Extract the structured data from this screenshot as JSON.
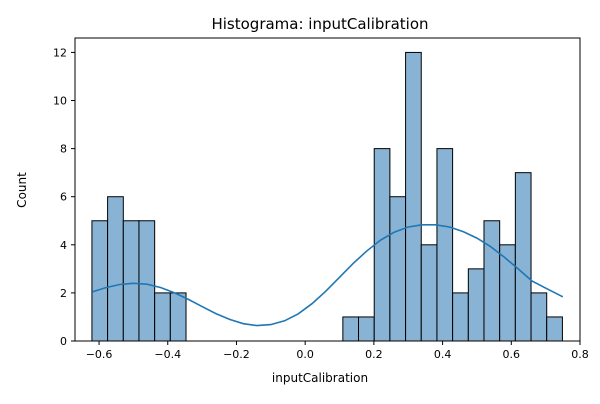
{
  "chart_data": {
    "type": "bar",
    "title": "Histograma: inputCalibration",
    "xlabel": "inputCalibration",
    "ylabel": "Count",
    "xlim": [
      -0.67,
      0.8
    ],
    "ylim": [
      0,
      12.6
    ],
    "x_ticks": [
      -0.6,
      -0.4,
      -0.2,
      0.0,
      0.2,
      0.4,
      0.6,
      0.8
    ],
    "x_tick_labels": [
      "−0.6",
      "−0.4",
      "−0.2",
      "0.0",
      "0.2",
      "0.4",
      "0.6",
      "0.8"
    ],
    "y_ticks": [
      0,
      2,
      4,
      6,
      8,
      10,
      12
    ],
    "y_tick_labels": [
      "0",
      "2",
      "4",
      "6",
      "8",
      "10",
      "12"
    ],
    "bin_edges": [
      -0.6207,
      -0.5751,
      -0.5294,
      -0.4838,
      -0.4381,
      -0.3925,
      -0.3468,
      -0.3012,
      -0.2555,
      -0.2099,
      -0.1642,
      -0.1186,
      -0.0729,
      -0.0273,
      0.0184,
      0.064,
      0.1097,
      0.1553,
      0.201,
      0.2466,
      0.2923,
      0.3379,
      0.3836,
      0.4292,
      0.4749,
      0.5205,
      0.5662,
      0.6118,
      0.6575,
      0.7031,
      0.7488
    ],
    "counts": [
      5,
      6,
      5,
      5,
      2,
      2,
      0,
      0,
      0,
      0,
      0,
      0,
      0,
      0,
      0,
      0,
      1,
      1,
      8,
      6,
      12,
      4,
      8,
      2,
      3,
      5,
      4,
      7,
      2,
      1
    ],
    "kde": {
      "x": [
        -0.62,
        -0.58,
        -0.54,
        -0.5,
        -0.46,
        -0.42,
        -0.38,
        -0.34,
        -0.3,
        -0.26,
        -0.22,
        -0.18,
        -0.14,
        -0.1,
        -0.06,
        -0.02,
        0.02,
        0.06,
        0.1,
        0.14,
        0.18,
        0.22,
        0.26,
        0.3,
        0.34,
        0.38,
        0.42,
        0.46,
        0.5,
        0.54,
        0.58,
        0.62,
        0.66,
        0.7,
        0.75
      ],
      "y": [
        2.04,
        2.22,
        2.35,
        2.4,
        2.36,
        2.22,
        2.0,
        1.73,
        1.43,
        1.14,
        0.9,
        0.72,
        0.64,
        0.68,
        0.84,
        1.13,
        1.55,
        2.07,
        2.65,
        3.23,
        3.75,
        4.2,
        4.53,
        4.74,
        4.83,
        4.83,
        4.74,
        4.55,
        4.28,
        3.92,
        3.48,
        3.0,
        2.5,
        2.2,
        1.84
      ]
    },
    "bar_color": "#89b3d5",
    "bar_edge_color": "#000000",
    "line_color": "#1f77b4",
    "grid": false,
    "legend": "none"
  }
}
